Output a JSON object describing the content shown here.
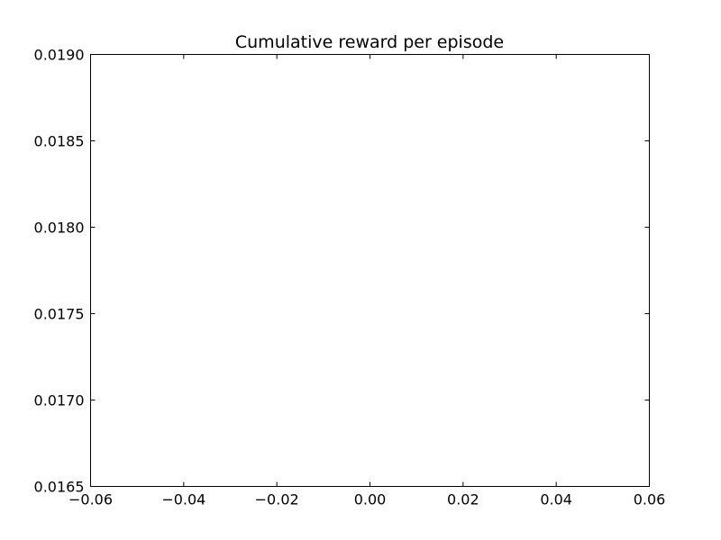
{
  "chart_data": {
    "type": "line",
    "title": "Cumulative reward per episode",
    "xlabel": "",
    "ylabel": "",
    "x": [],
    "series": [
      {
        "values": []
      }
    ],
    "xlim": [
      -0.06,
      0.06
    ],
    "ylim": [
      0.0165,
      0.019
    ],
    "x_ticks": [
      "−0.06",
      "−0.04",
      "−0.02",
      "0.00",
      "0.02",
      "0.04",
      "0.06"
    ],
    "y_ticks": [
      "0.0165",
      "0.0170",
      "0.0175",
      "0.0180",
      "0.0185",
      "0.0190"
    ],
    "grid": false,
    "legend": "none",
    "colors": {
      "axes": "#000000",
      "background": "#ffffff",
      "plot_background": "#ffffff"
    }
  }
}
